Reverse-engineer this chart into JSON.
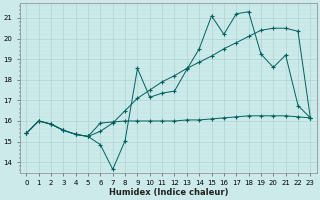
{
  "xlabel": "Humidex (Indice chaleur)",
  "bg_color": "#cceaea",
  "grid_color_major": "#aacccc",
  "grid_color_minor": "#bbdddd",
  "line_color": "#006060",
  "xlim": [
    -0.5,
    23.5
  ],
  "ylim": [
    13.5,
    21.7
  ],
  "xticks": [
    0,
    1,
    2,
    3,
    4,
    5,
    6,
    7,
    8,
    9,
    10,
    11,
    12,
    13,
    14,
    15,
    16,
    17,
    18,
    19,
    20,
    21,
    22,
    23
  ],
  "yticks": [
    14,
    15,
    16,
    17,
    18,
    19,
    20,
    21
  ],
  "line1_x": [
    0,
    1,
    2,
    3,
    4,
    5,
    6,
    7,
    8,
    9,
    10,
    11,
    12,
    13,
    14,
    15,
    16,
    17,
    18,
    19,
    20,
    21,
    22,
    23
  ],
  "line1_y": [
    15.4,
    16.0,
    15.85,
    15.55,
    15.35,
    15.25,
    14.85,
    13.65,
    15.05,
    18.55,
    17.15,
    17.35,
    17.45,
    18.5,
    19.5,
    21.1,
    20.2,
    21.2,
    21.3,
    19.25,
    18.6,
    19.2,
    16.75,
    16.15
  ],
  "line2_x": [
    0,
    1,
    2,
    3,
    4,
    5,
    6,
    7,
    8,
    9,
    10,
    11,
    12,
    13,
    14,
    15,
    16,
    17,
    18,
    19,
    20,
    21,
    22,
    23
  ],
  "line2_y": [
    15.4,
    16.0,
    15.85,
    15.55,
    15.35,
    15.25,
    15.9,
    15.95,
    16.0,
    16.0,
    16.0,
    16.0,
    16.0,
    16.05,
    16.05,
    16.1,
    16.15,
    16.2,
    16.25,
    16.25,
    16.25,
    16.25,
    16.2,
    16.15
  ],
  "line3_x": [
    0,
    1,
    2,
    3,
    4,
    5,
    6,
    7,
    8,
    9,
    10,
    11,
    12,
    13,
    14,
    15,
    16,
    17,
    18,
    19,
    20,
    21,
    22,
    23
  ],
  "line3_y": [
    15.4,
    16.0,
    15.85,
    15.55,
    15.35,
    15.25,
    15.5,
    15.9,
    16.5,
    17.1,
    17.5,
    17.9,
    18.2,
    18.55,
    18.85,
    19.15,
    19.5,
    19.8,
    20.1,
    20.4,
    20.5,
    20.5,
    20.35,
    16.15
  ]
}
